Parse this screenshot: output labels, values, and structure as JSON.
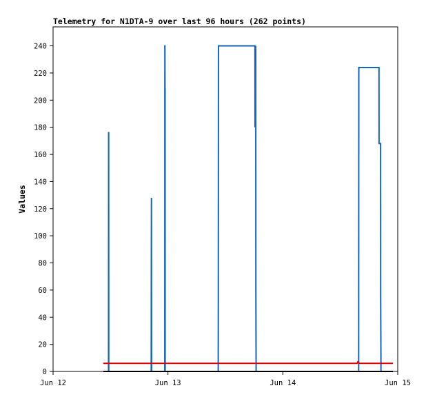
{
  "chart_data": {
    "type": "line",
    "title": "Telemetry for N1DTA-9 over last 96 hours (262 points)",
    "xlabel": "",
    "ylabel": "Values",
    "x_ticks": [
      "Jun 12",
      "Jun 13",
      "Jun 14",
      "Jun 15"
    ],
    "x_range": [
      "Jun 12 00:00",
      "Jun 15 00:00"
    ],
    "ylim": [
      0,
      254
    ],
    "y_ticks": [
      0,
      20,
      40,
      60,
      80,
      100,
      120,
      140,
      160,
      180,
      200,
      220,
      240
    ],
    "grid": false,
    "legend": "none",
    "series": [
      {
        "color": "#1565c0",
        "points": [
          [
            "Jun 12 11:30",
            0
          ],
          [
            "Jun 12 11:35",
            0
          ],
          [
            "Jun 12 11:36",
            176
          ],
          [
            "Jun 12 11:37",
            176
          ],
          [
            "Jun 12 11:38",
            0
          ],
          [
            "Jun 12 20:30",
            0
          ],
          [
            "Jun 12 20:31",
            64
          ],
          [
            "Jun 12 20:33",
            128
          ],
          [
            "Jun 12 20:35",
            0
          ],
          [
            "Jun 12 23:20",
            0
          ],
          [
            "Jun 12 23:21",
            240
          ],
          [
            "Jun 12 23:22",
            240
          ],
          [
            "Jun 12 23:23",
            208
          ],
          [
            "Jun 12 23:24",
            208
          ],
          [
            "Jun 12 23:25",
            0
          ],
          [
            "Jun 13 10:30",
            0
          ],
          [
            "Jun 13 10:31",
            48
          ],
          [
            "Jun 13 10:33",
            240
          ],
          [
            "Jun 13 18:10",
            240
          ],
          [
            "Jun 13 18:11",
            180
          ],
          [
            "Jun 13 18:20",
            240
          ],
          [
            "Jun 13 18:22",
            60
          ],
          [
            "Jun 13 18:25",
            0
          ],
          [
            "Jun 14 15:50",
            0
          ],
          [
            "Jun 14 15:52",
            224
          ],
          [
            "Jun 14 20:05",
            224
          ],
          [
            "Jun 14 20:06",
            168
          ],
          [
            "Jun 14 20:25",
            168
          ],
          [
            "Jun 14 20:26",
            56
          ],
          [
            "Jun 14 20:30",
            0
          ]
        ]
      },
      {
        "color": "#e00000",
        "points": [
          [
            "Jun 12 10:30",
            6
          ],
          [
            "Jun 14 15:30",
            6
          ],
          [
            "Jun 14 15:40",
            7
          ],
          [
            "Jun 14 16:00",
            6
          ],
          [
            "Jun 14 23:00",
            6
          ]
        ]
      },
      {
        "color": "#000000",
        "points": [
          [
            "Jun 12 10:30",
            0
          ],
          [
            "Jun 14 23:00",
            0
          ]
        ]
      }
    ]
  }
}
